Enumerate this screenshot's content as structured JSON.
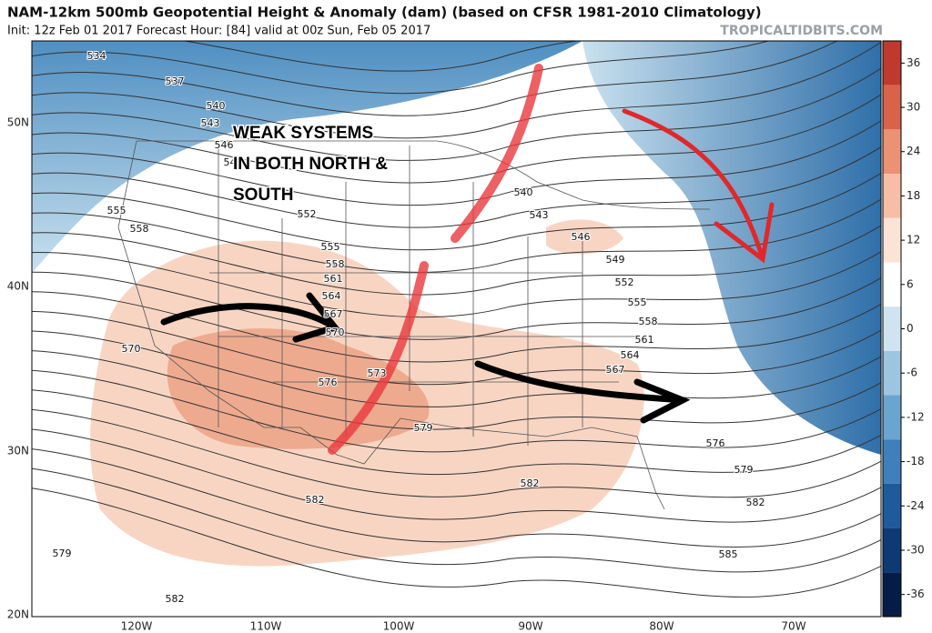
{
  "header": {
    "title": "NAM-12km 500mb Geopotential Height & Anomaly (dam) (based on CFSR 1981-2010 Climatology)",
    "subtitle": "Init: 12z Feb 01 2017   Forecast Hour: [84]   valid at 00z Sun, Feb 05 2017",
    "watermark": "TROPICALTIDBITS.COM"
  },
  "map": {
    "lat_labels": [
      "50N",
      "40N",
      "30N",
      "20N"
    ],
    "lon_labels": [
      "120W",
      "110W",
      "100W",
      "90W",
      "80W",
      "70W"
    ],
    "contour_labels": [
      "534",
      "537",
      "540",
      "543",
      "546",
      "549",
      "552",
      "555",
      "558",
      "555",
      "558",
      "561",
      "564",
      "567",
      "570",
      "570",
      "573",
      "576",
      "579",
      "540",
      "543",
      "546",
      "549",
      "552",
      "555",
      "558",
      "561",
      "564",
      "567",
      "576",
      "579",
      "582",
      "582",
      "582",
      "585",
      "579",
      "582"
    ],
    "annotation": [
      "WEAK SYSTEMS",
      "IN BOTH NORTH &",
      "SOUTH"
    ]
  },
  "colorbar": {
    "lim": [
      -39,
      39
    ],
    "ticks": [
      36,
      30,
      24,
      18,
      12,
      6,
      0,
      -6,
      -12,
      -18,
      -24,
      -30,
      -36
    ]
  }
}
